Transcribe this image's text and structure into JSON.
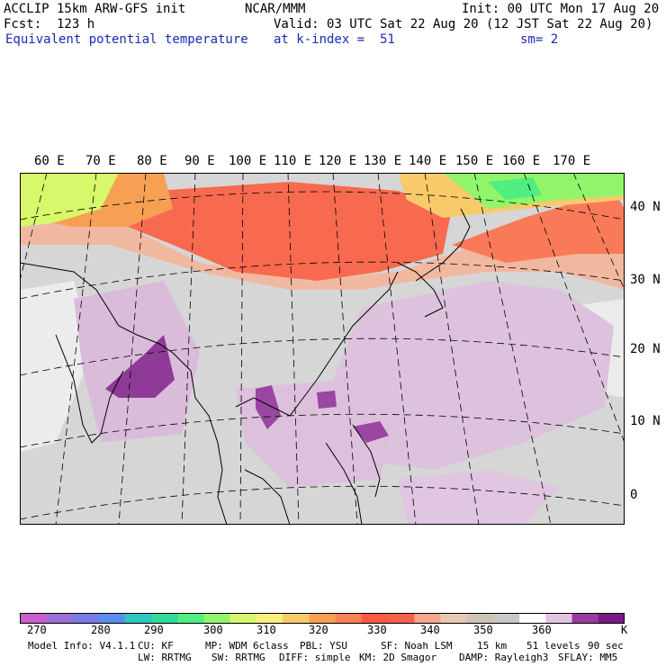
{
  "header": {
    "model": "ACCLIP 15km ARW-GFS init",
    "org": "NCAR/MMM",
    "init": "Init: 00 UTC Mon 17 Aug 20",
    "fcst": "Fcst:  123 h",
    "valid": "Valid: 03 UTC Sat 22 Aug 20 (12 JST Sat 22 Aug 20)",
    "field": "Equivalent potential temperature",
    "level": "at k-index =  51",
    "smooth": "sm= 2"
  },
  "map": {
    "lon_labels": [
      "60 E",
      "70 E",
      "80 E",
      "90 E",
      "100 E",
      "110 E",
      "120 E",
      "130 E",
      "140 E",
      "150 E",
      "160 E",
      "170 E"
    ],
    "lat_labels": [
      "40 N",
      "30 N",
      "20 N",
      "10 N",
      "0"
    ],
    "projection": "polar-stereographic"
  },
  "colorbar": {
    "colors": [
      "#c95ed0",
      "#9a6fd6",
      "#7a7ae6",
      "#5b8cf0",
      "#30c6c0",
      "#30d89a",
      "#50ee80",
      "#90f56a",
      "#d6f86a",
      "#f8f07a",
      "#f8ca6a",
      "#f7a054",
      "#f98054",
      "#f95a46",
      "#f7604a",
      "#f5a58a",
      "#e8c8b0",
      "#cfc3b7",
      "#c8c8c8",
      "#ffffff",
      "#e2c4e2",
      "#9a3aa0",
      "#7a1a84"
    ],
    "labels": [
      "270",
      "280",
      "290",
      "300",
      "310",
      "320",
      "330",
      "340",
      "350",
      "360",
      "K"
    ]
  },
  "footer": {
    "line1": [
      "Model Info: V4.1.1",
      "CU: KF",
      "MP: WDM 6class",
      "PBL: YSU",
      "SF: Noah LSM",
      "15 km",
      "51 levels",
      "90 sec"
    ],
    "line2": [
      "LW: RRTMG",
      "SW: RRTMG",
      "DIFF: simple",
      "KM: 2D Smagor",
      "DAMP: Rayleigh3",
      "SFLAY: MM5"
    ]
  }
}
